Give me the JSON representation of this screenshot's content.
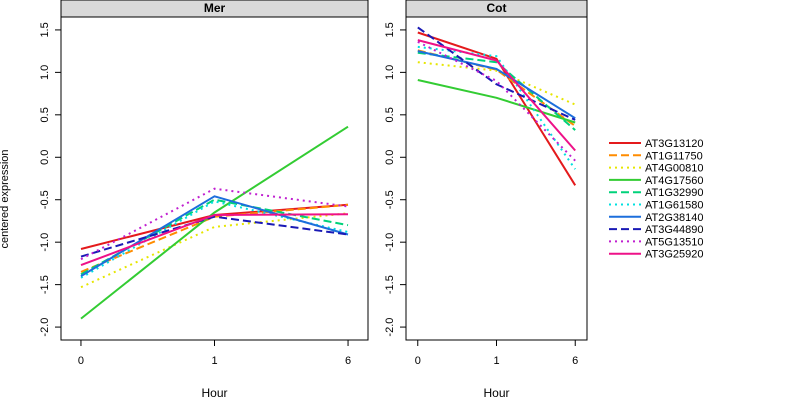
{
  "figure": {
    "ylabel": "centered expression",
    "xlabel": "Hour"
  },
  "legend": {
    "placement": "right"
  },
  "chart_data": [
    {
      "type": "line",
      "title": "Mer",
      "xlabel": "Hour",
      "ylabel": "centered expression",
      "categories": [
        "0",
        "1",
        "6"
      ],
      "ylim": [
        -2.0,
        1.5
      ],
      "yticks": [
        -2.0,
        -1.5,
        -1.0,
        -0.5,
        0.0,
        0.5,
        1.0,
        1.5
      ],
      "grid": false,
      "series": [
        {
          "name": "AT3G13120",
          "color": "#e41a1c",
          "dash": "solid",
          "values": [
            -1.08,
            -0.68,
            -0.56
          ]
        },
        {
          "name": "AT1G11750",
          "color": "#ff8c00",
          "dash": "dashed",
          "values": [
            -1.35,
            -0.7,
            -0.56
          ]
        },
        {
          "name": "AT4G00810",
          "color": "#e6e600",
          "dash": "dotted",
          "values": [
            -1.53,
            -0.82,
            -0.66
          ]
        },
        {
          "name": "AT4G17560",
          "color": "#33cc33",
          "dash": "solid",
          "values": [
            -1.9,
            -0.65,
            0.36
          ]
        },
        {
          "name": "AT1G32990",
          "color": "#00d27a",
          "dash": "dashed",
          "values": [
            -1.38,
            -0.5,
            -0.8
          ]
        },
        {
          "name": "AT1G61580",
          "color": "#00e0e0",
          "dash": "dotted",
          "values": [
            -1.42,
            -0.52,
            -0.88
          ]
        },
        {
          "name": "AT2G38140",
          "color": "#1c6fdc",
          "dash": "solid",
          "values": [
            -1.4,
            -0.46,
            -0.91
          ]
        },
        {
          "name": "AT3G44890",
          "color": "#1a1ab5",
          "dash": "dashed",
          "values": [
            -1.17,
            -0.7,
            -0.91
          ]
        },
        {
          "name": "AT5G13510",
          "color": "#c020d0",
          "dash": "dotted",
          "values": [
            -1.2,
            -0.37,
            -0.58
          ]
        },
        {
          "name": "AT3G25920",
          "color": "#ee1188",
          "dash": "solid",
          "values": [
            -1.27,
            -0.68,
            -0.67
          ]
        }
      ]
    },
    {
      "type": "line",
      "title": "Cot",
      "xlabel": "Hour",
      "ylabel": "",
      "categories": [
        "0",
        "1",
        "6"
      ],
      "ylim": [
        -2.0,
        1.5
      ],
      "yticks": [
        -2.0,
        -1.5,
        -1.0,
        -0.5,
        0.0,
        0.5,
        1.0,
        1.5
      ],
      "grid": false,
      "series": [
        {
          "name": "AT3G13120",
          "color": "#e41a1c",
          "dash": "solid",
          "values": [
            1.47,
            1.16,
            -0.33
          ]
        },
        {
          "name": "AT1G11750",
          "color": "#ff8c00",
          "dash": "dashed",
          "values": [
            1.26,
            1.03,
            0.37
          ]
        },
        {
          "name": "AT4G00810",
          "color": "#e6e600",
          "dash": "dotted",
          "values": [
            1.12,
            1.02,
            0.62
          ]
        },
        {
          "name": "AT4G17560",
          "color": "#33cc33",
          "dash": "solid",
          "values": [
            0.91,
            0.7,
            0.41
          ]
        },
        {
          "name": "AT1G32990",
          "color": "#00d27a",
          "dash": "dashed",
          "values": [
            1.23,
            1.12,
            0.32
          ]
        },
        {
          "name": "AT1G61580",
          "color": "#00e0e0",
          "dash": "dotted",
          "values": [
            1.3,
            1.19,
            -0.14
          ]
        },
        {
          "name": "AT2G38140",
          "color": "#1c6fdc",
          "dash": "solid",
          "values": [
            1.25,
            1.04,
            0.46
          ]
        },
        {
          "name": "AT3G44890",
          "color": "#1a1ab5",
          "dash": "dashed",
          "values": [
            1.53,
            0.86,
            0.44
          ]
        },
        {
          "name": "AT5G13510",
          "color": "#c020d0",
          "dash": "dotted",
          "values": [
            1.36,
            0.9,
            -0.04
          ]
        },
        {
          "name": "AT3G25920",
          "color": "#ee1188",
          "dash": "solid",
          "values": [
            1.38,
            1.14,
            0.08
          ]
        }
      ]
    }
  ]
}
